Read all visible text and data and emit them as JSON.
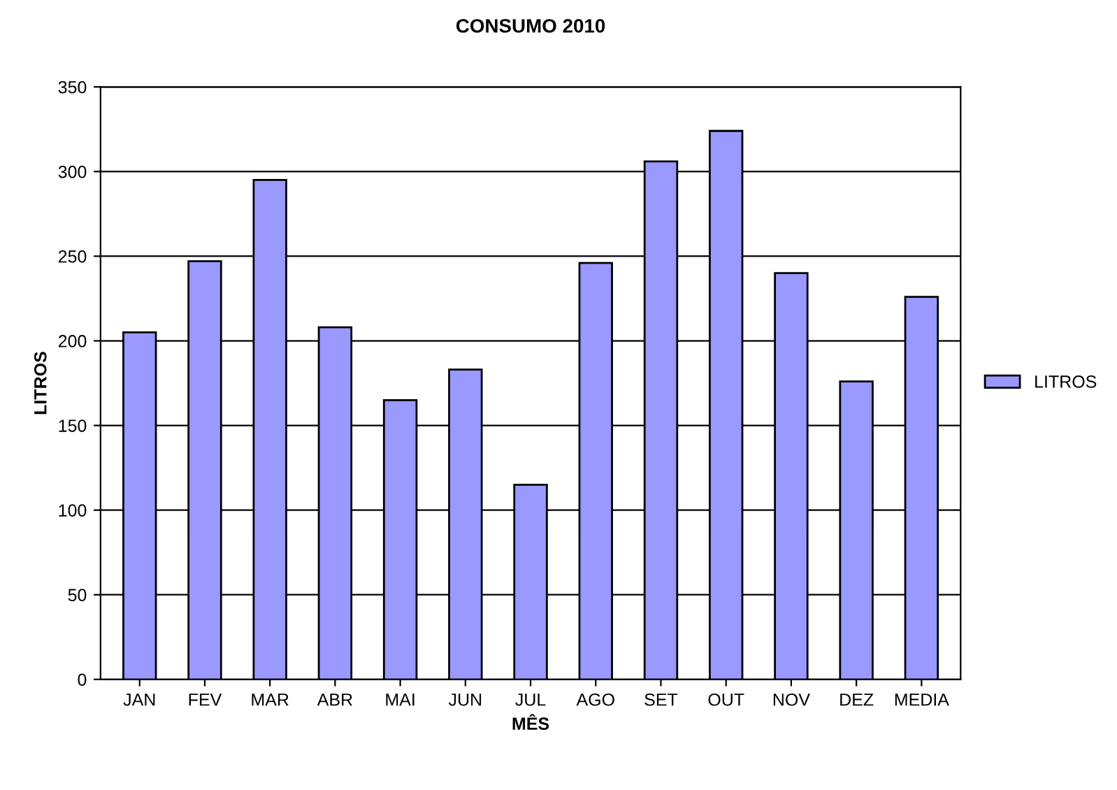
{
  "chart_data": {
    "type": "bar",
    "title": "CONSUMO 2010",
    "xlabel": "MÊS",
    "ylabel": "LITROS",
    "categories": [
      "JAN",
      "FEV",
      "MAR",
      "ABR",
      "MAI",
      "JUN",
      "JUL",
      "AGO",
      "SET",
      "OUT",
      "NOV",
      "DEZ",
      "MEDIA"
    ],
    "series": [
      {
        "name": "LITROS",
        "color": "#9999ff",
        "values": [
          205,
          247,
          295,
          208,
          165,
          183,
          115,
          246,
          306,
          324,
          240,
          176,
          226
        ]
      }
    ],
    "ylim": [
      0,
      350
    ],
    "yticks": [
      0,
      50,
      100,
      150,
      200,
      250,
      300,
      350
    ],
    "grid": "y",
    "legend": "right"
  }
}
